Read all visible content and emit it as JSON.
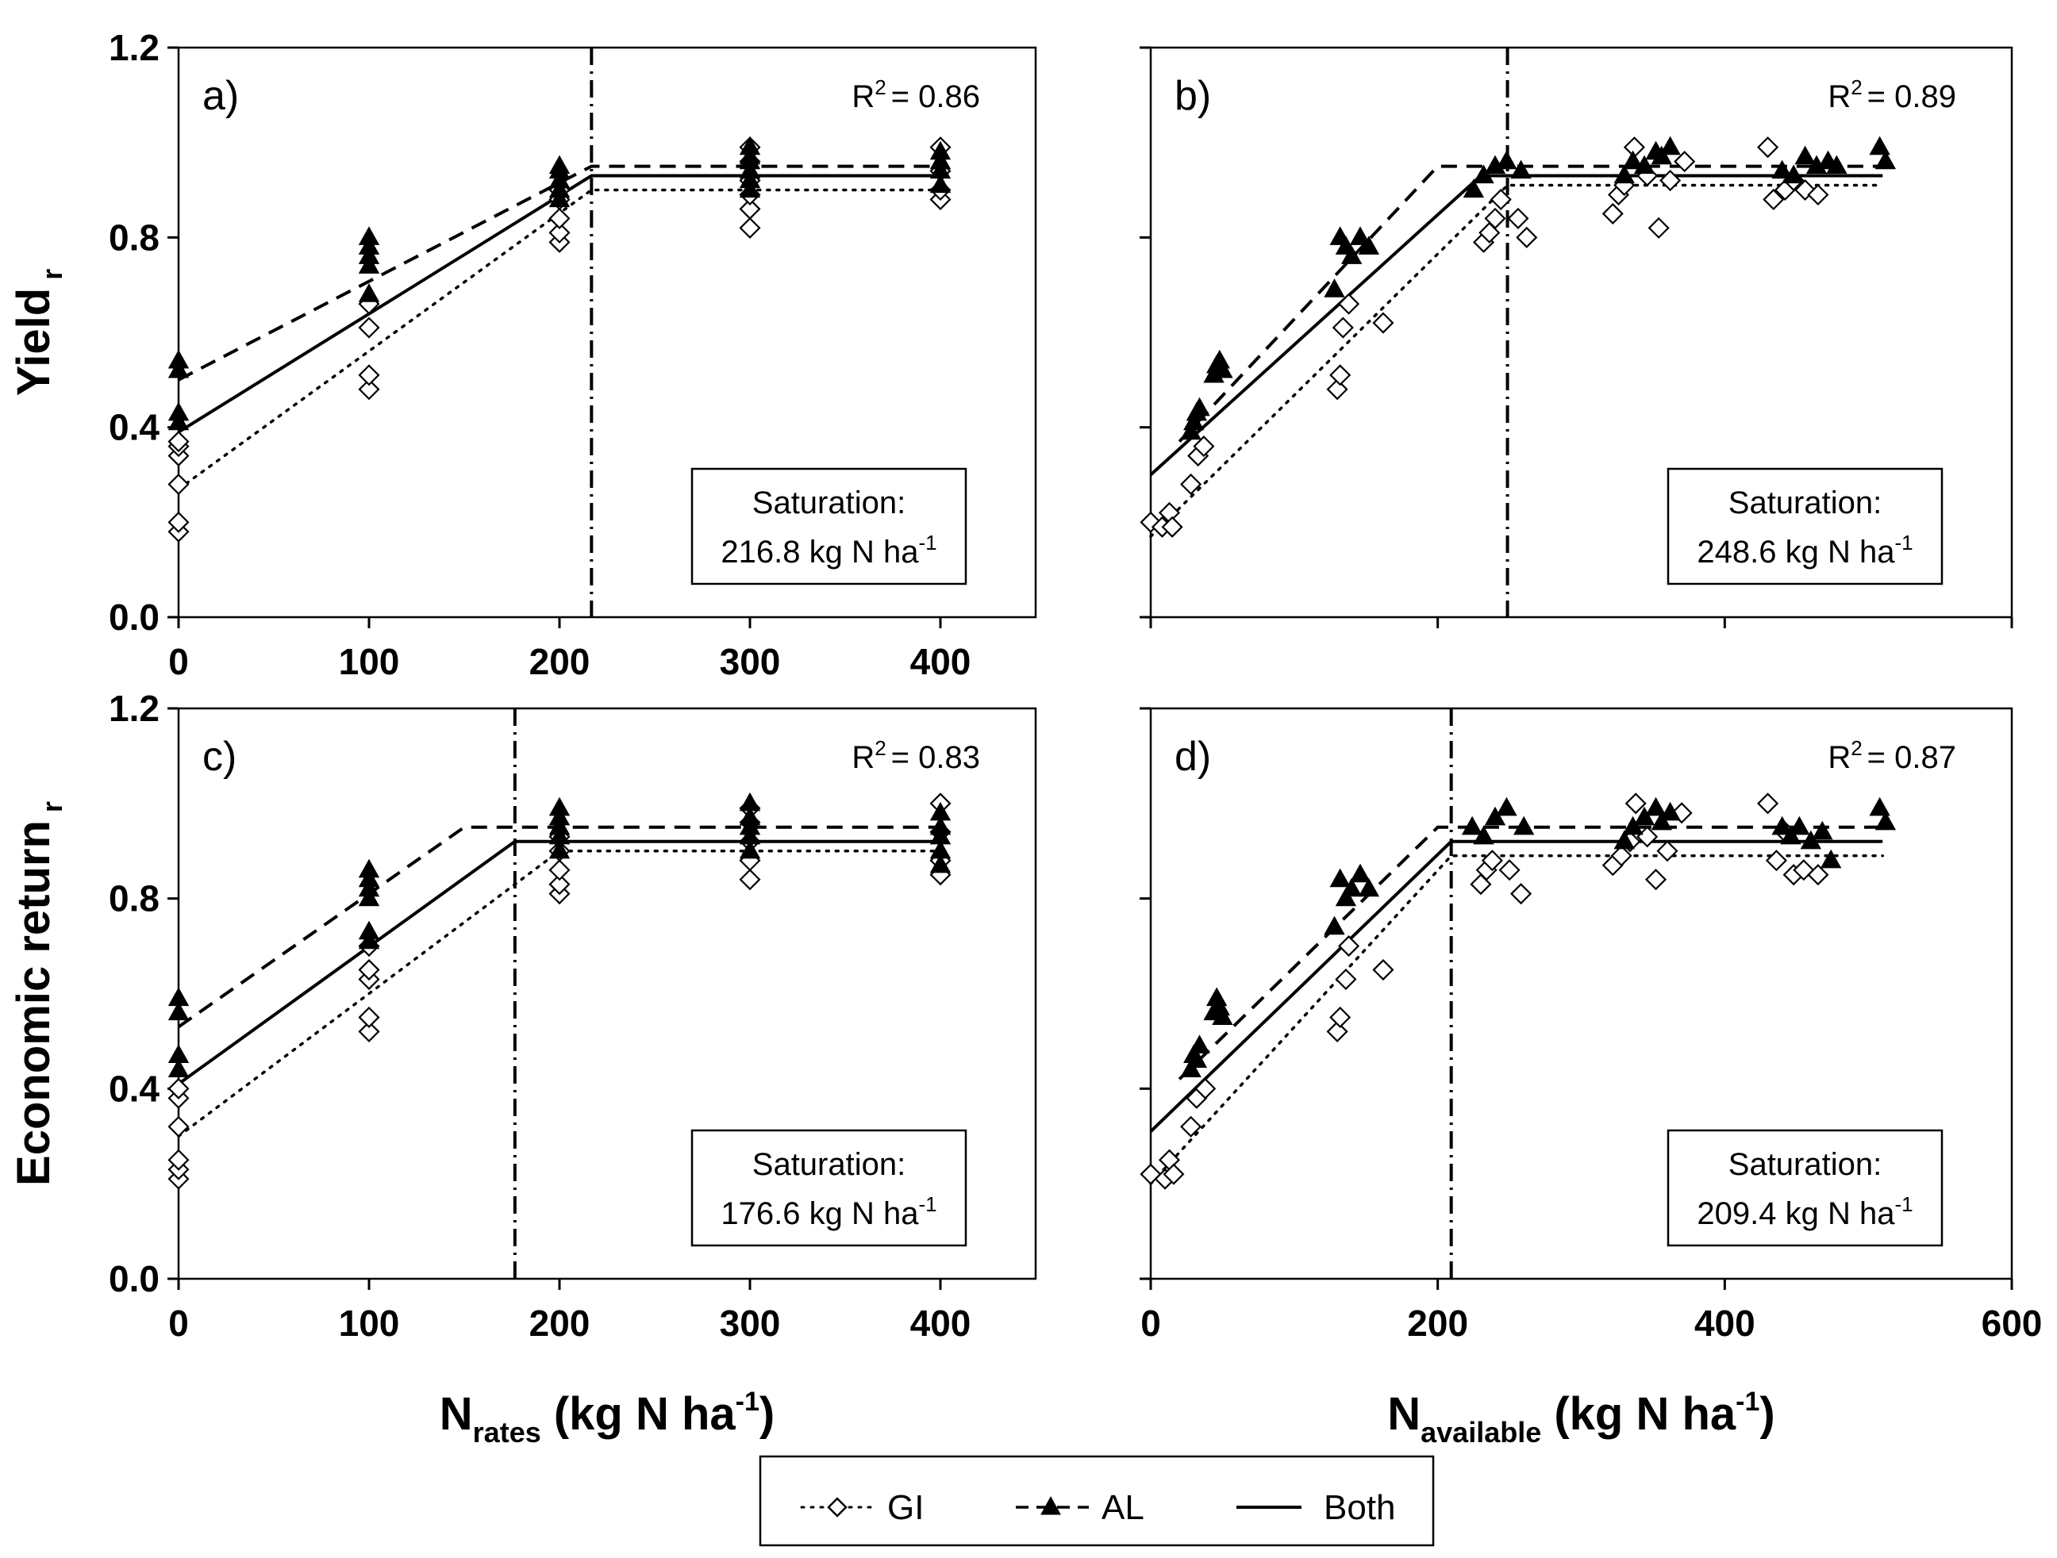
{
  "chart_data": [
    {
      "panel_label": "a)",
      "type": "scatter",
      "title": "",
      "xlabel": "",
      "xticks": [
        "0",
        "100",
        "200",
        "300",
        "400"
      ],
      "ylabel": "Yield r",
      "ylabel_main": "Yield",
      "ylabel_sub": "r",
      "yticks": [
        "0.0",
        "0.4",
        "0.8",
        "1.2"
      ],
      "xlim": [
        0,
        450
      ],
      "ylim": [
        0,
        1.2
      ],
      "r2_label": "R",
      "r2_sup": "2",
      "r2_value": "= 0.86",
      "saturation_title": "Saturation:",
      "saturation_value": "216.8 kg N ha",
      "saturation_sup": "-1",
      "vline_x": 216.8,
      "fits": [
        {
          "name": "GI",
          "style": "dotted",
          "points": [
            [
              0,
              0.27
            ],
            [
              216.8,
              0.9
            ],
            [
              400,
              0.9
            ]
          ]
        },
        {
          "name": "AL",
          "style": "dashed",
          "points": [
            [
              0,
              0.5
            ],
            [
              216.8,
              0.95
            ],
            [
              400,
              0.95
            ]
          ]
        },
        {
          "name": "Both",
          "style": "solid",
          "points": [
            [
              0,
              0.39
            ],
            [
              216.8,
              0.93
            ],
            [
              400,
              0.93
            ]
          ]
        }
      ],
      "series": [
        {
          "name": "GI",
          "marker": "diamond",
          "x": [
            0,
            0,
            0,
            0,
            0,
            0,
            100,
            100,
            100,
            100,
            200,
            200,
            200,
            200,
            200,
            300,
            300,
            300,
            300,
            300,
            300,
            400,
            400,
            400,
            400
          ],
          "y": [
            0.18,
            0.2,
            0.28,
            0.34,
            0.36,
            0.37,
            0.48,
            0.51,
            0.61,
            0.66,
            0.79,
            0.81,
            0.84,
            0.88,
            0.9,
            0.82,
            0.86,
            0.89,
            0.92,
            0.96,
            0.99,
            0.88,
            0.9,
            0.94,
            0.99
          ]
        },
        {
          "name": "AL",
          "marker": "triangle",
          "x": [
            0,
            0,
            0,
            0,
            100,
            100,
            100,
            100,
            100,
            200,
            200,
            200,
            200,
            200,
            300,
            300,
            300,
            300,
            300,
            300,
            400,
            400,
            400,
            400
          ],
          "y": [
            0.41,
            0.43,
            0.52,
            0.54,
            0.68,
            0.74,
            0.76,
            0.78,
            0.8,
            0.88,
            0.9,
            0.92,
            0.94,
            0.95,
            0.9,
            0.92,
            0.94,
            0.96,
            0.97,
            0.99,
            0.91,
            0.94,
            0.96,
            0.98
          ]
        }
      ]
    },
    {
      "panel_label": "b)",
      "type": "scatter",
      "title": "",
      "xlabel": "",
      "xticks": [],
      "ylabel": "",
      "yticks": [],
      "xlim": [
        0,
        600
      ],
      "ylim": [
        0,
        1.2
      ],
      "r2_label": "R",
      "r2_sup": "2",
      "r2_value": "= 0.89",
      "saturation_title": "Saturation:",
      "saturation_value": "248.6 kg N ha",
      "saturation_sup": "-1",
      "vline_x": 248.6,
      "fits": [
        {
          "name": "GI",
          "style": "dotted",
          "points": [
            [
              0,
              0.17
            ],
            [
              248.6,
              0.91
            ],
            [
              510,
              0.91
            ]
          ]
        },
        {
          "name": "AL",
          "style": "dashed",
          "points": [
            [
              20,
              0.37
            ],
            [
              200,
              0.95
            ],
            [
              510,
              0.95
            ]
          ]
        },
        {
          "name": "Both",
          "style": "solid",
          "points": [
            [
              0,
              0.3
            ],
            [
              230,
              0.93
            ],
            [
              510,
              0.93
            ]
          ]
        }
      ],
      "series": [
        {
          "name": "GI",
          "marker": "diamond",
          "x": [
            0,
            8,
            13,
            15,
            28,
            33,
            37,
            130,
            132,
            134,
            138,
            162,
            232,
            236,
            240,
            244,
            256,
            262,
            322,
            326,
            330,
            337,
            346,
            354,
            362,
            372,
            430,
            434,
            442,
            448,
            456,
            465
          ],
          "y": [
            0.2,
            0.19,
            0.22,
            0.19,
            0.28,
            0.34,
            0.36,
            0.48,
            0.51,
            0.61,
            0.66,
            0.62,
            0.79,
            0.81,
            0.84,
            0.88,
            0.84,
            0.8,
            0.85,
            0.89,
            0.91,
            0.99,
            0.93,
            0.82,
            0.92,
            0.96,
            0.99,
            0.88,
            0.9,
            0.92,
            0.9,
            0.89
          ]
        },
        {
          "name": "AL",
          "marker": "triangle",
          "x": [
            28,
            30,
            32,
            34,
            44,
            46,
            48,
            50,
            128,
            132,
            136,
            140,
            146,
            152,
            225,
            232,
            240,
            248,
            258,
            330,
            336,
            344,
            352,
            356,
            362,
            440,
            448,
            456,
            464,
            472,
            478,
            508,
            512
          ],
          "y": [
            0.39,
            0.41,
            0.43,
            0.44,
            0.51,
            0.53,
            0.54,
            0.52,
            0.69,
            0.8,
            0.78,
            0.76,
            0.8,
            0.78,
            0.9,
            0.93,
            0.95,
            0.96,
            0.94,
            0.93,
            0.96,
            0.95,
            0.98,
            0.97,
            0.99,
            0.94,
            0.93,
            0.97,
            0.95,
            0.96,
            0.95,
            0.99,
            0.96
          ]
        }
      ]
    },
    {
      "panel_label": "c)",
      "type": "scatter",
      "title": "",
      "xlabel": "N rates (kg N ha-1)",
      "xlabel_main": "N",
      "xlabel_sub": "rates",
      "xlabel_rest": " (kg N ha",
      "xlabel_sup": "-1",
      "xlabel_close": ")",
      "xticks": [
        "0",
        "100",
        "200",
        "300",
        "400"
      ],
      "ylabel": "Economic return r",
      "ylabel_main": "Economic return",
      "ylabel_sub": "r",
      "yticks": [
        "0.0",
        "0.4",
        "0.8",
        "1.2"
      ],
      "xlim": [
        0,
        450
      ],
      "ylim": [
        0,
        1.2
      ],
      "r2_label": "R",
      "r2_sup": "2",
      "r2_value": "= 0.83",
      "saturation_title": "Saturation:",
      "saturation_value": "176.6 kg N ha",
      "saturation_sup": "-1",
      "vline_x": 176.6,
      "fits": [
        {
          "name": "GI",
          "style": "dotted",
          "points": [
            [
              0,
              0.3
            ],
            [
              200,
              0.9
            ],
            [
              400,
              0.9
            ]
          ]
        },
        {
          "name": "AL",
          "style": "dashed",
          "points": [
            [
              0,
              0.53
            ],
            [
              150,
              0.95
            ],
            [
              400,
              0.95
            ]
          ]
        },
        {
          "name": "Both",
          "style": "solid",
          "points": [
            [
              0,
              0.41
            ],
            [
              176.6,
              0.92
            ],
            [
              400,
              0.92
            ]
          ]
        }
      ],
      "series": [
        {
          "name": "GI",
          "marker": "diamond",
          "x": [
            0,
            0,
            0,
            0,
            0,
            0,
            100,
            100,
            100,
            100,
            100,
            200,
            200,
            200,
            200,
            200,
            300,
            300,
            300,
            300,
            300,
            400,
            400,
            400,
            400
          ],
          "y": [
            0.21,
            0.23,
            0.25,
            0.32,
            0.38,
            0.4,
            0.52,
            0.55,
            0.63,
            0.65,
            0.7,
            0.81,
            0.83,
            0.86,
            0.9,
            0.93,
            0.84,
            0.88,
            0.92,
            0.96,
            0.99,
            0.85,
            0.88,
            0.94,
            1.0
          ]
        },
        {
          "name": "AL",
          "marker": "triangle",
          "x": [
            0,
            0,
            0,
            0,
            100,
            100,
            100,
            100,
            100,
            100,
            200,
            200,
            200,
            200,
            200,
            300,
            300,
            300,
            300,
            300,
            400,
            400,
            400,
            400,
            400
          ],
          "y": [
            0.44,
            0.47,
            0.56,
            0.59,
            0.71,
            0.73,
            0.8,
            0.82,
            0.84,
            0.86,
            0.9,
            0.93,
            0.95,
            0.97,
            0.99,
            0.9,
            0.93,
            0.95,
            0.97,
            1.0,
            0.87,
            0.9,
            0.93,
            0.95,
            0.98
          ]
        }
      ]
    },
    {
      "panel_label": "d)",
      "type": "scatter",
      "title": "",
      "xlabel": "N available (kg N ha-1)",
      "xlabel_main": "N",
      "xlabel_sub": "available",
      "xlabel_rest": " (kg N ha",
      "xlabel_sup": "-1",
      "xlabel_close": ")",
      "xticks": [
        "0",
        "200",
        "400",
        "600"
      ],
      "ylabel": "",
      "yticks": [],
      "xlim": [
        0,
        600
      ],
      "ylim": [
        0,
        1.2
      ],
      "r2_label": "R",
      "r2_sup": "2",
      "r2_value": "= 0.87",
      "saturation_title": "Saturation:",
      "saturation_value": "209.4 kg N ha",
      "saturation_sup": "-1",
      "vline_x": 209.4,
      "fits": [
        {
          "name": "GI",
          "style": "dotted",
          "points": [
            [
              0,
              0.2
            ],
            [
              209.4,
              0.89
            ],
            [
              510,
              0.89
            ]
          ]
        },
        {
          "name": "AL",
          "style": "dashed",
          "points": [
            [
              20,
              0.42
            ],
            [
              200,
              0.95
            ],
            [
              510,
              0.95
            ]
          ]
        },
        {
          "name": "Both",
          "style": "solid",
          "points": [
            [
              0,
              0.31
            ],
            [
              209.4,
              0.92
            ],
            [
              510,
              0.92
            ]
          ]
        }
      ],
      "series": [
        {
          "name": "GI",
          "marker": "diamond",
          "x": [
            0,
            10,
            13,
            16,
            28,
            32,
            38,
            130,
            132,
            136,
            138,
            162,
            230,
            234,
            238,
            250,
            258,
            322,
            328,
            334,
            338,
            346,
            352,
            360,
            370,
            430,
            436,
            442,
            448,
            455,
            465
          ],
          "y": [
            0.22,
            0.21,
            0.25,
            0.22,
            0.32,
            0.38,
            0.4,
            0.52,
            0.55,
            0.63,
            0.7,
            0.65,
            0.83,
            0.86,
            0.88,
            0.86,
            0.81,
            0.87,
            0.89,
            0.92,
            1.0,
            0.93,
            0.84,
            0.9,
            0.98,
            1.0,
            0.88,
            0.94,
            0.85,
            0.86,
            0.85
          ]
        },
        {
          "name": "AL",
          "marker": "triangle",
          "x": [
            28,
            30,
            32,
            34,
            44,
            46,
            48,
            50,
            128,
            132,
            136,
            140,
            146,
            152,
            224,
            232,
            240,
            248,
            260,
            330,
            336,
            344,
            352,
            356,
            362,
            440,
            446,
            452,
            460,
            468,
            474,
            508,
            512
          ],
          "y": [
            0.44,
            0.47,
            0.46,
            0.49,
            0.56,
            0.59,
            0.57,
            0.55,
            0.74,
            0.84,
            0.8,
            0.82,
            0.85,
            0.82,
            0.95,
            0.93,
            0.97,
            0.99,
            0.95,
            0.92,
            0.95,
            0.97,
            0.99,
            0.96,
            0.98,
            0.95,
            0.93,
            0.95,
            0.92,
            0.94,
            0.88,
            0.99,
            0.96
          ]
        }
      ]
    }
  ],
  "legend": {
    "items": [
      {
        "label": "GI",
        "style": "dotted",
        "marker": "diamond"
      },
      {
        "label": "AL",
        "style": "dashed",
        "marker": "triangle"
      },
      {
        "label": "Both",
        "style": "solid",
        "marker": "none"
      }
    ]
  }
}
